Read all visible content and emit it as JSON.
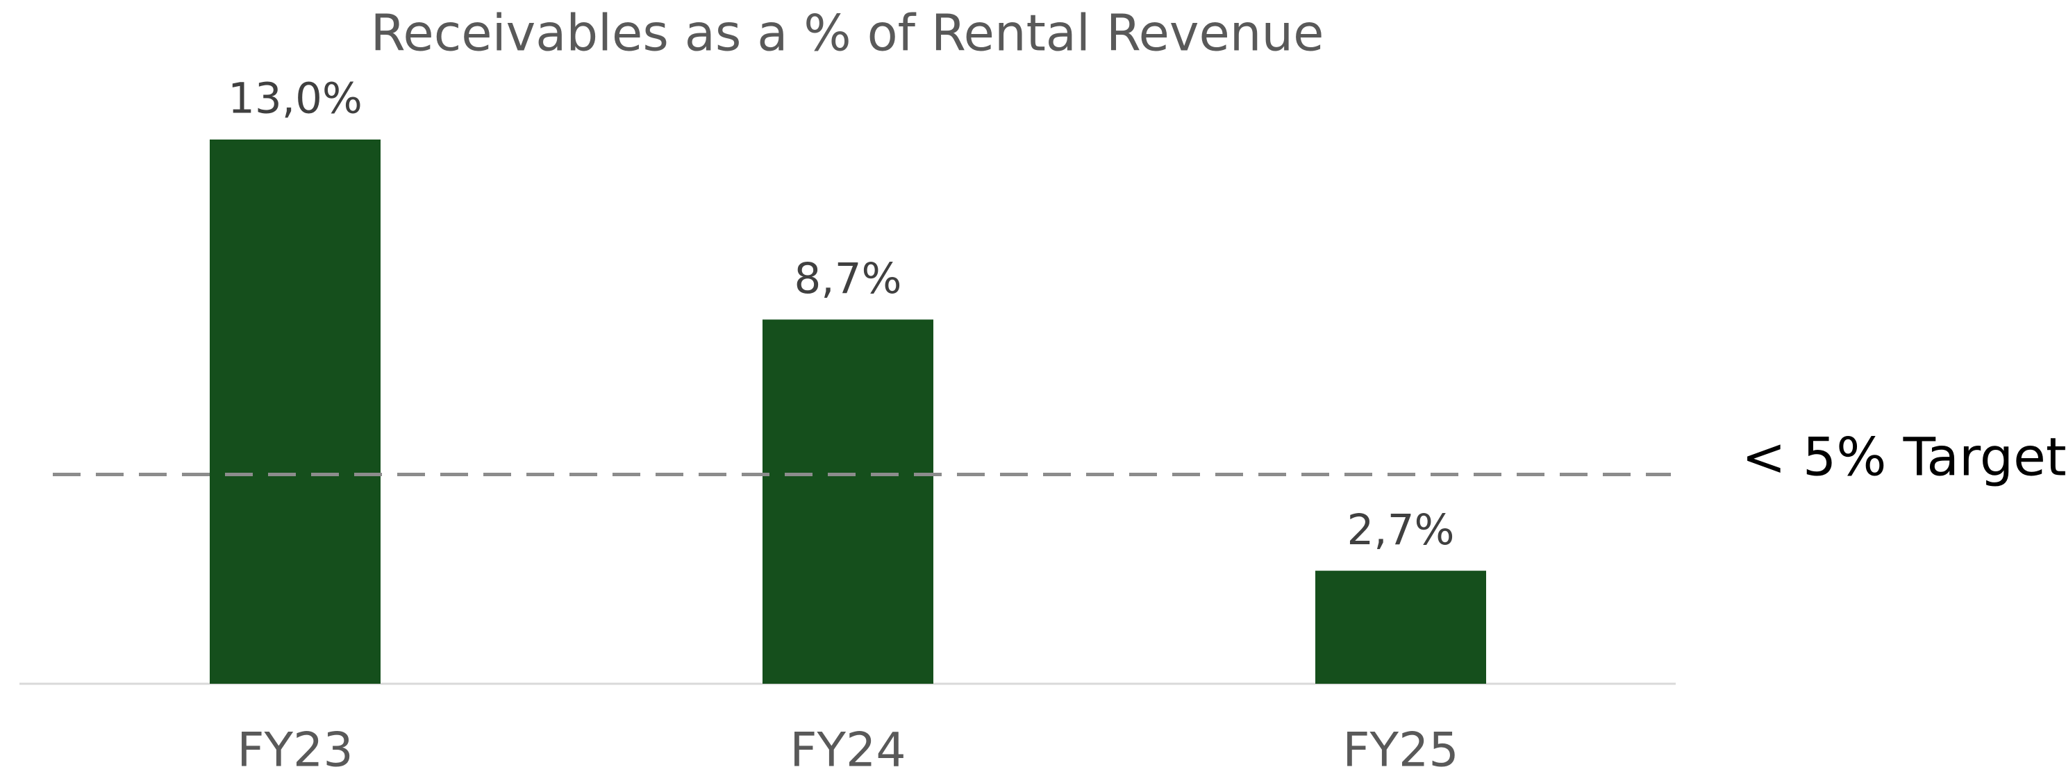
{
  "chart_data": {
    "type": "bar",
    "title": "Receivables as a % of Rental Revenue",
    "categories": [
      "FY23",
      "FY24",
      "FY25"
    ],
    "values": [
      13.0,
      8.7,
      2.7
    ],
    "value_labels": [
      "13,0%",
      "8,7%",
      "2,7%"
    ],
    "color": "#154f1c",
    "target": {
      "value": 5,
      "label": "< 5% Target"
    }
  }
}
